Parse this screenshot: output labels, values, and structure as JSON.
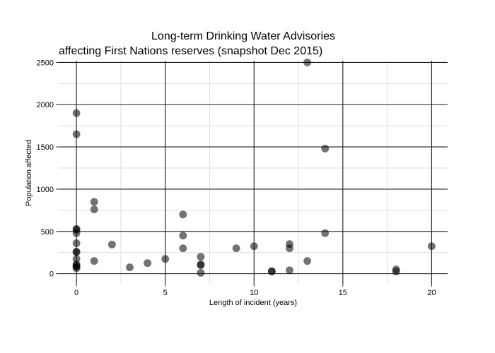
{
  "chart_data": {
    "type": "scatter",
    "title": "Long-term Drinking Water Advisories",
    "subtitle": "affecting First Nations reserves (snapshot Dec 2015)",
    "xlabel": "Length of incident (years)",
    "ylabel": "Population affected",
    "xlim": [
      -1,
      20.9
    ],
    "ylim": [
      -120,
      2520
    ],
    "x_major_ticks": [
      0,
      5,
      10,
      15,
      20
    ],
    "x_major_tick_labels": [
      "0",
      "5",
      "10",
      "15",
      "20"
    ],
    "x_minor_ticks": [
      2.5,
      7.5,
      12.5,
      17.5
    ],
    "y_major_ticks": [
      0,
      500,
      1000,
      1500,
      2000,
      2500
    ],
    "y_major_tick_labels": [
      "0",
      "500",
      "1000",
      "1500",
      "2000",
      "2500"
    ],
    "y_minor_ticks": [
      250,
      750,
      1250,
      1750,
      2250
    ],
    "grid": true,
    "legend": "none",
    "point_color": "#000000",
    "point_opacity": 0.55,
    "points": [
      {
        "x": 0,
        "y": 1900
      },
      {
        "x": 0,
        "y": 1650
      },
      {
        "x": 0,
        "y": 530
      },
      {
        "x": 0,
        "y": 520
      },
      {
        "x": 0,
        "y": 480
      },
      {
        "x": 0,
        "y": 360
      },
      {
        "x": 0,
        "y": 260
      },
      {
        "x": 0,
        "y": 255
      },
      {
        "x": 0,
        "y": 175
      },
      {
        "x": 0,
        "y": 110
      },
      {
        "x": 0,
        "y": 95
      },
      {
        "x": 0,
        "y": 80
      },
      {
        "x": 0,
        "y": 65
      },
      {
        "x": 1,
        "y": 850
      },
      {
        "x": 1,
        "y": 760
      },
      {
        "x": 1,
        "y": 150
      },
      {
        "x": 2,
        "y": 345
      },
      {
        "x": 3,
        "y": 75
      },
      {
        "x": 4,
        "y": 125
      },
      {
        "x": 5,
        "y": 175
      },
      {
        "x": 6,
        "y": 700
      },
      {
        "x": 6,
        "y": 450
      },
      {
        "x": 6,
        "y": 300
      },
      {
        "x": 7,
        "y": 200
      },
      {
        "x": 7,
        "y": 110
      },
      {
        "x": 7,
        "y": 100
      },
      {
        "x": 7,
        "y": 10
      },
      {
        "x": 9,
        "y": 300
      },
      {
        "x": 10,
        "y": 325
      },
      {
        "x": 11,
        "y": 30
      },
      {
        "x": 11,
        "y": 25
      },
      {
        "x": 12,
        "y": 350
      },
      {
        "x": 12,
        "y": 300
      },
      {
        "x": 12,
        "y": 40
      },
      {
        "x": 13,
        "y": 2500
      },
      {
        "x": 13,
        "y": 150
      },
      {
        "x": 14,
        "y": 1480
      },
      {
        "x": 14,
        "y": 480
      },
      {
        "x": 18,
        "y": 50
      },
      {
        "x": 18,
        "y": 25
      },
      {
        "x": 20,
        "y": 325
      }
    ]
  }
}
